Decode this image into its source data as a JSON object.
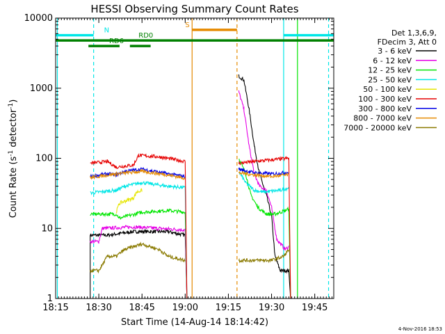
{
  "chart_data": {
    "type": "line",
    "title": "HESSI Observing Summary Count Rates",
    "xlabel": "Start Time (14-Aug-14 18:14:42)",
    "ylabel_main": "Count Rate (s",
    "ylabel_sup1": "-1",
    "ylabel_mid": " detector",
    "ylabel_sup2": "-1",
    "ylabel_end": ")",
    "yscale": "log",
    "xlim": [
      18.25,
      19.86
    ],
    "ylim": [
      1,
      10000
    ],
    "xticks": [
      "18:15",
      "18:30",
      "18:45",
      "19:00",
      "19:15",
      "19:30",
      "19:45"
    ],
    "xtick_values": [
      18.25,
      18.5,
      18.75,
      19.0,
      19.25,
      19.5,
      19.75
    ],
    "yticks": [
      "1",
      "10",
      "100",
      "1000",
      "10000"
    ],
    "ytick_values": [
      1,
      10,
      100,
      1000,
      10000
    ],
    "legend_header": [
      "Det 1,3,6,9,",
      "FDecim 3, Att 0"
    ],
    "legend_position": "right",
    "series": [
      {
        "name": "3 - 6 keV",
        "color": "#000000",
        "segments": [
          [
            [
              18.45,
              1
            ],
            [
              18.45,
              8
            ],
            [
              18.55,
              8
            ],
            [
              18.7,
              9
            ],
            [
              18.8,
              9
            ],
            [
              18.9,
              9
            ],
            [
              19.0,
              8
            ],
            [
              19.01,
              1
            ]
          ],
          [
            [
              19.31,
              1500
            ],
            [
              19.34,
              1300
            ],
            [
              19.37,
              500
            ],
            [
              19.4,
              150
            ],
            [
              19.43,
              60
            ],
            [
              19.47,
              30
            ],
            [
              19.5,
              15
            ],
            [
              19.52,
              4
            ],
            [
              19.55,
              2.5
            ],
            [
              19.6,
              2.5
            ],
            [
              19.61,
              1
            ]
          ]
        ]
      },
      {
        "name": "6 - 12 keV",
        "color": "#e600e6",
        "segments": [
          [
            [
              18.45,
              6.5
            ],
            [
              18.5,
              6.5
            ],
            [
              18.52,
              10
            ],
            [
              18.7,
              10.5
            ],
            [
              18.85,
              10
            ],
            [
              19.0,
              9.5
            ],
            [
              19.01,
              1
            ]
          ],
          [
            [
              19.31,
              900
            ],
            [
              19.34,
              500
            ],
            [
              19.37,
              150
            ],
            [
              19.4,
              60
            ],
            [
              19.43,
              40
            ],
            [
              19.47,
              35
            ],
            [
              19.5,
              20
            ],
            [
              19.53,
              7
            ],
            [
              19.58,
              5
            ],
            [
              19.6,
              5.5
            ]
          ]
        ]
      },
      {
        "name": "12 - 25 keV",
        "color": "#00e600",
        "segments": [
          [
            [
              18.45,
              16
            ],
            [
              18.6,
              16
            ],
            [
              18.62,
              14
            ],
            [
              18.75,
              17
            ],
            [
              18.9,
              18
            ],
            [
              19.0,
              17
            ],
            [
              19.01,
              1
            ]
          ],
          [
            [
              19.31,
              100
            ],
            [
              19.35,
              60
            ],
            [
              19.38,
              30
            ],
            [
              19.42,
              20
            ],
            [
              19.47,
              16
            ],
            [
              19.52,
              16
            ],
            [
              19.58,
              18
            ],
            [
              19.6,
              19
            ],
            [
              19.61,
              1
            ]
          ]
        ]
      },
      {
        "name": "25 - 50 keV",
        "color": "#00e6e6",
        "segments": [
          [
            [
              18.45,
              32
            ],
            [
              18.6,
              35
            ],
            [
              18.65,
              40
            ],
            [
              18.75,
              45
            ],
            [
              18.9,
              40
            ],
            [
              19.0,
              38
            ],
            [
              19.01,
              1
            ]
          ],
          [
            [
              19.31,
              65
            ],
            [
              19.35,
              45
            ],
            [
              19.4,
              35
            ],
            [
              19.45,
              33
            ],
            [
              19.55,
              35
            ],
            [
              19.6,
              38
            ]
          ]
        ]
      },
      {
        "name": "50 - 100 keV",
        "color": "#e6e600",
        "segments": [
          [
            [
              18.6,
              17
            ],
            [
              18.62,
              23
            ],
            [
              18.7,
              27
            ],
            [
              18.72,
              33
            ],
            [
              18.75,
              35
            ]
          ]
        ]
      },
      {
        "name": "100 - 300 keV",
        "color": "#e60000",
        "segments": [
          [
            [
              18.45,
              85
            ],
            [
              18.55,
              90
            ],
            [
              18.6,
              75
            ],
            [
              18.7,
              80
            ],
            [
              18.73,
              110
            ],
            [
              18.85,
              105
            ],
            [
              19.0,
              90
            ],
            [
              19.01,
              1
            ]
          ],
          [
            [
              19.31,
              85
            ],
            [
              19.4,
              90
            ],
            [
              19.5,
              95
            ],
            [
              19.6,
              100
            ],
            [
              19.61,
              1
            ]
          ]
        ]
      },
      {
        "name": "300 - 800 keV",
        "color": "#0000e6",
        "segments": [
          [
            [
              18.45,
              55
            ],
            [
              18.55,
              60
            ],
            [
              18.6,
              58
            ],
            [
              18.65,
              65
            ],
            [
              18.75,
              70
            ],
            [
              18.9,
              60
            ],
            [
              19.0,
              55
            ]
          ],
          [
            [
              19.31,
              70
            ],
            [
              19.4,
              62
            ],
            [
              19.5,
              60
            ],
            [
              19.6,
              63
            ]
          ]
        ]
      },
      {
        "name": "800 - 7000 keV",
        "color": "#e68a00",
        "segments": [
          [
            [
              18.45,
              53
            ],
            [
              18.6,
              60
            ],
            [
              18.75,
              65
            ],
            [
              18.9,
              58
            ],
            [
              19.0,
              52
            ]
          ],
          [
            [
              19.31,
              62
            ],
            [
              19.4,
              58
            ],
            [
              19.5,
              55
            ],
            [
              19.6,
              58
            ]
          ]
        ]
      },
      {
        "name": "7000 - 20000 keV",
        "color": "#8a7a00",
        "segments": [
          [
            [
              18.45,
              2.5
            ],
            [
              18.5,
              2.5
            ],
            [
              18.55,
              4
            ],
            [
              18.6,
              4
            ],
            [
              18.65,
              5
            ],
            [
              18.75,
              6
            ],
            [
              18.85,
              5
            ],
            [
              18.9,
              4
            ],
            [
              19.0,
              3.5
            ]
          ],
          [
            [
              19.31,
              3.5
            ],
            [
              19.4,
              3.5
            ],
            [
              19.5,
              3.5
            ],
            [
              19.57,
              4
            ],
            [
              19.6,
              5
            ]
          ]
        ]
      }
    ],
    "flag_bars": [
      {
        "label": "N",
        "color": "#00e6e6",
        "y": 5700,
        "spans": [
          [
            18.25,
            18.47
          ],
          [
            19.57,
            19.86
          ]
        ],
        "label_x": 18.53
      },
      {
        "label": "S",
        "color": "#e68a00",
        "y": 6800,
        "spans": [
          [
            19.04,
            19.3
          ]
        ],
        "label_x": 19.0
      },
      {
        "label": "",
        "color": "#008000",
        "y": 4800,
        "spans": [
          [
            18.25,
            19.86
          ]
        ],
        "label_x": null
      },
      {
        "label": "RD0",
        "color": "#008000",
        "y": 4800,
        "spans": [],
        "label_x": 18.73
      },
      {
        "label": "RD6",
        "color": "#008000",
        "y": 4000,
        "spans": [
          [
            18.44,
            18.62
          ],
          [
            18.68,
            18.8
          ]
        ],
        "label_x": 18.56
      }
    ],
    "vertical_lines": [
      {
        "x": 18.26,
        "color": "#00e6e6",
        "style": "solid"
      },
      {
        "x": 18.47,
        "color": "#00e6e6",
        "style": "dashed"
      },
      {
        "x": 19.04,
        "color": "#e68a00",
        "style": "solid"
      },
      {
        "x": 19.3,
        "color": "#e68a00",
        "style": "dashed"
      },
      {
        "x": 19.57,
        "color": "#00e6e6",
        "style": "solid"
      },
      {
        "x": 19.65,
        "color": "#00e600",
        "style": "solid"
      },
      {
        "x": 19.83,
        "color": "#00e6e6",
        "style": "dashed"
      }
    ],
    "footer_date": "4-Nov-2016 18:53"
  }
}
